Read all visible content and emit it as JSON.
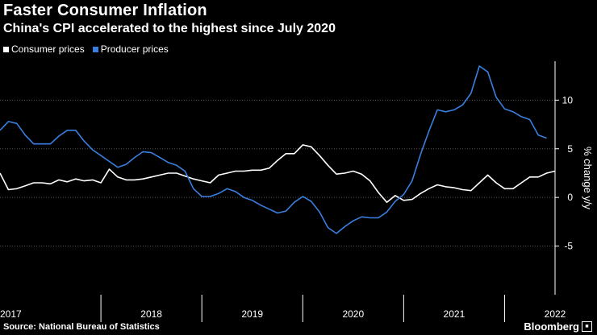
{
  "header": {
    "title": "Faster Consumer Inflation",
    "subtitle": "China's CPI accelerated to the highest since July 2020"
  },
  "footer": {
    "source": "Source: National Bureau of Statistics",
    "brand": "Bloomberg"
  },
  "colors": {
    "consumer": "#ffffff",
    "producer": "#3a7fe0",
    "grid": "#555555"
  },
  "chart_data": {
    "type": "line",
    "title": "Faster Consumer Inflation",
    "subtitle": "China's CPI accelerated to the highest since July 2020",
    "ylabel": "% change y/y",
    "ylim": [
      -10,
      14
    ],
    "yticks": [
      -5,
      0,
      5,
      10
    ],
    "y_axis_side": "right",
    "grid": "horizontal dotted",
    "legend_position": "top-left",
    "x_start": "2017-01",
    "year_labels": [
      "2017",
      "2018",
      "2019",
      "2020",
      "2021",
      "2022"
    ],
    "year_label_months": [
      0,
      18,
      30,
      42,
      54,
      66
    ],
    "year_boundaries": [
      12,
      24,
      36,
      48,
      60
    ],
    "series": [
      {
        "name": "Consumer prices",
        "color": "#ffffff",
        "values": [
          2.5,
          0.8,
          0.9,
          1.2,
          1.5,
          1.5,
          1.4,
          1.8,
          1.6,
          1.9,
          1.7,
          1.8,
          1.5,
          2.9,
          2.1,
          1.8,
          1.8,
          1.9,
          2.1,
          2.3,
          2.5,
          2.5,
          2.2,
          1.9,
          1.7,
          1.5,
          2.3,
          2.5,
          2.7,
          2.7,
          2.8,
          2.8,
          3.0,
          3.8,
          4.5,
          4.5,
          5.4,
          5.2,
          4.3,
          3.3,
          2.4,
          2.5,
          2.7,
          2.4,
          1.7,
          0.5,
          -0.5,
          0.2,
          -0.3,
          -0.2,
          0.4,
          0.9,
          1.3,
          1.1,
          1.0,
          0.8,
          0.7,
          1.5,
          2.3,
          1.5,
          0.9,
          0.9,
          1.5,
          2.1,
          2.1,
          2.5,
          2.7
        ]
      },
      {
        "name": "Producer prices",
        "color": "#3a7fe0",
        "values": [
          6.9,
          7.8,
          7.6,
          6.4,
          5.5,
          5.5,
          5.5,
          6.3,
          6.9,
          6.9,
          5.8,
          4.9,
          4.3,
          3.7,
          3.1,
          3.4,
          4.1,
          4.7,
          4.6,
          4.1,
          3.6,
          3.3,
          2.7,
          0.9,
          0.1,
          0.1,
          0.4,
          0.9,
          0.6,
          0.0,
          -0.3,
          -0.8,
          -1.2,
          -1.6,
          -1.4,
          -0.5,
          0.1,
          -0.4,
          -1.5,
          -3.1,
          -3.7,
          -3.0,
          -2.4,
          -2.0,
          -2.1,
          -2.1,
          -1.5,
          -0.4,
          0.3,
          1.7,
          4.4,
          6.8,
          9.0,
          8.8,
          9.0,
          9.5,
          10.7,
          13.5,
          12.9,
          10.3,
          9.1,
          8.8,
          8.3,
          8.0,
          6.4,
          6.1
        ]
      }
    ]
  }
}
